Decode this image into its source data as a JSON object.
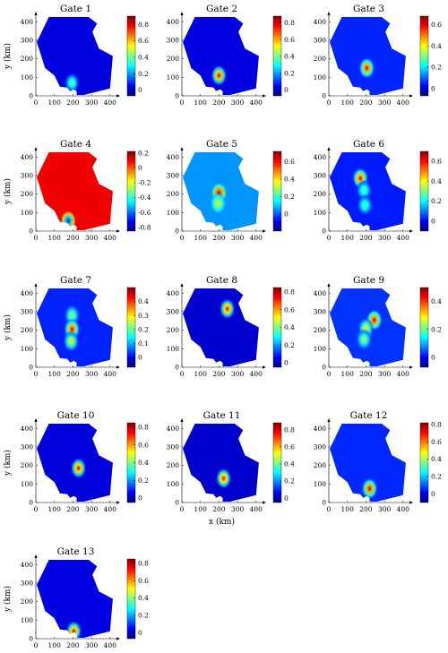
{
  "figure": {
    "xlabel": "x (km)",
    "ylabel": "y (km)"
  },
  "chart_data": [
    {
      "type": "heatmap",
      "title": "Gate 1",
      "xlabel": "",
      "ylabel": "y (km)",
      "xticks": [
        0,
        100,
        200,
        300,
        400
      ],
      "yticks": [
        0,
        100,
        200,
        300,
        400
      ],
      "xlim": [
        0,
        430
      ],
      "ylim": [
        0,
        430
      ],
      "colorbar_ticks": [
        0,
        0.2,
        0.4,
        0.6,
        0.8
      ],
      "colorbar_range": [
        -0.07,
        0.9
      ],
      "background_value": 0.02,
      "hotspots": [
        {
          "x": 195,
          "y": 70,
          "value": 0.45
        }
      ]
    },
    {
      "type": "heatmap",
      "title": "Gate 2",
      "xlabel": "",
      "ylabel": "",
      "xticks": [
        0,
        100,
        200,
        300,
        400
      ],
      "yticks": [
        0,
        100,
        200,
        300,
        400
      ],
      "xlim": [
        0,
        430
      ],
      "ylim": [
        0,
        430
      ],
      "colorbar_ticks": [
        0,
        0.2,
        0.4,
        0.6,
        0.8
      ],
      "colorbar_range": [
        -0.07,
        0.88
      ],
      "background_value": 0.02,
      "hotspots": [
        {
          "x": 200,
          "y": 110,
          "value": 0.85
        }
      ]
    },
    {
      "type": "heatmap",
      "title": "Gate 3",
      "xlabel": "",
      "ylabel": "",
      "xticks": [
        0,
        100,
        200,
        300,
        400
      ],
      "yticks": [
        0,
        100,
        200,
        300,
        400
      ],
      "xlim": [
        0,
        430
      ],
      "ylim": [
        0,
        430
      ],
      "colorbar_ticks": [
        0,
        0.2,
        0.4,
        0.6
      ],
      "colorbar_range": [
        -0.07,
        0.68
      ],
      "background_value": 0.05,
      "hotspots": [
        {
          "x": 205,
          "y": 150,
          "value": 0.65
        }
      ]
    },
    {
      "type": "heatmap",
      "title": "Gate 4",
      "xlabel": "",
      "ylabel": "y (km)",
      "xticks": [
        0,
        100,
        200,
        300,
        400
      ],
      "yticks": [
        0,
        100,
        200,
        300,
        400
      ],
      "xlim": [
        0,
        430
      ],
      "ylim": [
        0,
        430
      ],
      "colorbar_ticks": [
        -0.8,
        -0.6,
        -0.4,
        -0.2,
        0,
        0.2
      ],
      "colorbar_range": [
        -0.85,
        0.22
      ],
      "background_value": 0.1,
      "hotspots": [
        {
          "x": 175,
          "y": 55,
          "value": -0.8
        }
      ]
    },
    {
      "type": "heatmap",
      "title": "Gate 5",
      "xlabel": "",
      "ylabel": "",
      "xticks": [
        0,
        100,
        200,
        300,
        400
      ],
      "yticks": [
        0,
        100,
        200,
        300,
        400
      ],
      "xlim": [
        0,
        430
      ],
      "ylim": [
        0,
        430
      ],
      "colorbar_ticks": [
        0,
        0.2,
        0.4,
        0.6
      ],
      "colorbar_range": [
        -0.2,
        0.72
      ],
      "background_value": 0.05,
      "hotspots": [
        {
          "x": 200,
          "y": 205,
          "value": 0.7
        },
        {
          "x": 195,
          "y": 150,
          "value": 0.35
        }
      ]
    },
    {
      "type": "heatmap",
      "title": "Gate 6",
      "xlabel": "",
      "ylabel": "",
      "xticks": [
        0,
        100,
        200,
        300,
        400
      ],
      "yticks": [
        0,
        100,
        200,
        300,
        400
      ],
      "xlim": [
        0,
        430
      ],
      "ylim": [
        0,
        430
      ],
      "colorbar_ticks": [
        0,
        0.2,
        0.4,
        0.6
      ],
      "colorbar_range": [
        -0.1,
        0.7
      ],
      "background_value": 0.02,
      "hotspots": [
        {
          "x": 170,
          "y": 285,
          "value": 0.65
        },
        {
          "x": 190,
          "y": 220,
          "value": 0.3
        },
        {
          "x": 195,
          "y": 140,
          "value": 0.3
        }
      ]
    },
    {
      "type": "heatmap",
      "title": "Gate 7",
      "xlabel": "",
      "ylabel": "y (km)",
      "xticks": [
        0,
        100,
        200,
        300,
        400
      ],
      "yticks": [
        0,
        100,
        200,
        300,
        400
      ],
      "xlim": [
        0,
        430
      ],
      "ylim": [
        0,
        430
      ],
      "colorbar_ticks": [
        0,
        0.1,
        0.2,
        0.3,
        0.4
      ],
      "colorbar_range": [
        -0.07,
        0.5
      ],
      "background_value": 0.02,
      "hotspots": [
        {
          "x": 195,
          "y": 280,
          "value": 0.25
        },
        {
          "x": 195,
          "y": 205,
          "value": 0.48
        },
        {
          "x": 190,
          "y": 140,
          "value": 0.3
        }
      ]
    },
    {
      "type": "heatmap",
      "title": "Gate 8",
      "xlabel": "",
      "ylabel": "",
      "xticks": [
        0,
        100,
        200,
        300,
        400
      ],
      "yticks": [
        0,
        100,
        200,
        300,
        400
      ],
      "xlim": [
        0,
        430
      ],
      "ylim": [
        0,
        430
      ],
      "colorbar_ticks": [
        0,
        0.2,
        0.4,
        0.6,
        0.8
      ],
      "colorbar_range": [
        -0.05,
        0.85
      ],
      "background_value": 0.02,
      "hotspots": [
        {
          "x": 245,
          "y": 315,
          "value": 0.8
        }
      ]
    },
    {
      "type": "heatmap",
      "title": "Gate 9",
      "xlabel": "",
      "ylabel": "",
      "xticks": [
        0,
        100,
        200,
        300,
        400
      ],
      "yticks": [
        0,
        100,
        200,
        300,
        400
      ],
      "xlim": [
        0,
        430
      ],
      "ylim": [
        0,
        430
      ],
      "colorbar_ticks": [
        0,
        0.2,
        0.4
      ],
      "colorbar_range": [
        -0.07,
        0.5
      ],
      "background_value": 0.03,
      "hotspots": [
        {
          "x": 245,
          "y": 255,
          "value": 0.48
        },
        {
          "x": 200,
          "y": 210,
          "value": 0.3
        },
        {
          "x": 190,
          "y": 150,
          "value": 0.25
        }
      ]
    },
    {
      "type": "heatmap",
      "title": "Gate 10",
      "xlabel": "",
      "ylabel": "y (km)",
      "xticks": [
        0,
        100,
        200,
        300,
        400
      ],
      "yticks": [
        0,
        100,
        200,
        300,
        400
      ],
      "xlim": [
        0,
        430
      ],
      "ylim": [
        0,
        430
      ],
      "colorbar_ticks": [
        0,
        0.2,
        0.4,
        0.6,
        0.8
      ],
      "colorbar_range": [
        -0.05,
        0.85
      ],
      "background_value": 0.03,
      "hotspots": [
        {
          "x": 230,
          "y": 185,
          "value": 0.8
        }
      ]
    },
    {
      "type": "heatmap",
      "title": "Gate 11",
      "xlabel": "x (km)",
      "ylabel": "",
      "xticks": [
        0,
        100,
        200,
        300,
        400
      ],
      "yticks": [
        0,
        100,
        200,
        300,
        400
      ],
      "xlim": [
        0,
        430
      ],
      "ylim": [
        0,
        430
      ],
      "colorbar_ticks": [
        0,
        0.2,
        0.4,
        0.6,
        0.8
      ],
      "colorbar_range": [
        -0.05,
        0.88
      ],
      "background_value": 0.02,
      "hotspots": [
        {
          "x": 225,
          "y": 130,
          "value": 0.82
        }
      ]
    },
    {
      "type": "heatmap",
      "title": "Gate 12",
      "xlabel": "",
      "ylabel": "",
      "xticks": [
        0,
        100,
        200,
        300,
        400
      ],
      "yticks": [
        0,
        100,
        200,
        300,
        400
      ],
      "xlim": [
        0,
        430
      ],
      "ylim": [
        0,
        430
      ],
      "colorbar_ticks": [
        0,
        0.2,
        0.4,
        0.6,
        0.8
      ],
      "colorbar_range": [
        -0.1,
        0.82
      ],
      "background_value": 0.05,
      "hotspots": [
        {
          "x": 220,
          "y": 75,
          "value": 0.8
        }
      ]
    },
    {
      "type": "heatmap",
      "title": "Gate 13",
      "xlabel": "x (km)",
      "ylabel": "y (km)",
      "xticks": [
        0,
        100,
        200,
        300,
        400
      ],
      "yticks": [
        0,
        100,
        200,
        300,
        400
      ],
      "xlim": [
        0,
        430
      ],
      "ylim": [
        0,
        430
      ],
      "colorbar_ticks": [
        0,
        0.2,
        0.4,
        0.6,
        0.8
      ],
      "colorbar_range": [
        -0.07,
        0.85
      ],
      "background_value": 0.02,
      "hotspots": [
        {
          "x": 205,
          "y": 40,
          "value": 0.8
        }
      ]
    }
  ]
}
